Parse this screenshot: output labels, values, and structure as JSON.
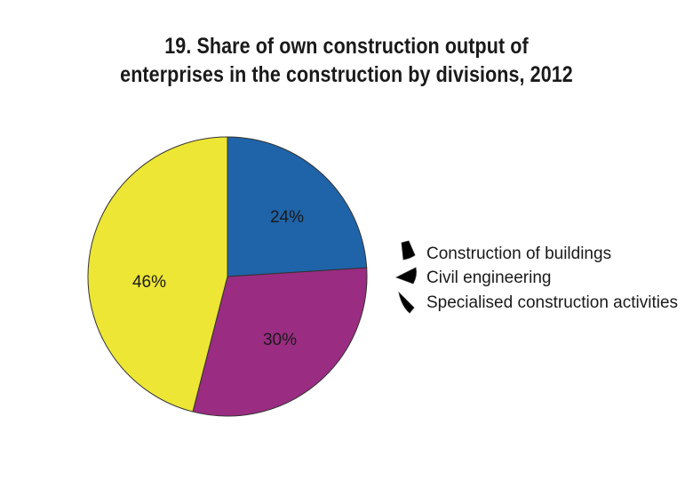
{
  "chart_data": {
    "type": "pie",
    "title_lines": [
      "19. Share of own construction output of",
      "enterprises in the construction by divisions, 2012"
    ],
    "categories": [
      "Construction of buildings",
      "Civil engineering",
      "Specialised construction activities"
    ],
    "values": [
      24,
      30,
      46
    ],
    "labels": [
      "24%",
      "30%",
      "46%"
    ],
    "colors": [
      "#1f64a8",
      "#9a2c82",
      "#ede634"
    ],
    "start_angle_deg": 0,
    "direction": "clockwise",
    "legend_position": "right"
  }
}
